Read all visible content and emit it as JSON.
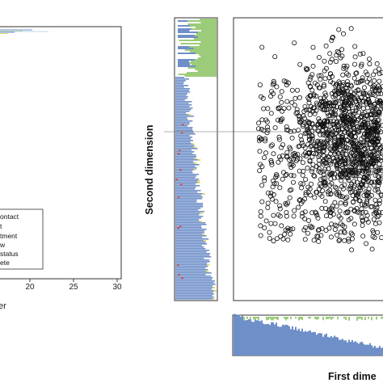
{
  "chart_data": [
    {
      "type": "line",
      "panel": "left",
      "x_ticks": [
        "20",
        "25",
        "30"
      ],
      "xlim": [
        0,
        30
      ],
      "xlabel_partial": "er",
      "legend": [
        "ontact",
        "t",
        "tment",
        "w",
        "status",
        "ete"
      ],
      "grid": false
    },
    {
      "type": "heatmap",
      "panel": "vertical-side-strip",
      "colors": {
        "main": "#6f8fc9",
        "top": "#9ccc7a",
        "accent_red": "#d94a3a",
        "accent_yellow": "#e8d96a"
      }
    },
    {
      "type": "scatter",
      "panel": "main",
      "title": "",
      "xlabel": "First dime",
      "ylabel": "Second dimension",
      "marker": "open-circle",
      "n_points": 1600,
      "reference_line_y": 0,
      "grid": false
    },
    {
      "type": "heatmap",
      "panel": "horizontal-bottom-strip",
      "colors": {
        "main": "#6f8fc9",
        "top": "#9ccc7a"
      }
    }
  ]
}
